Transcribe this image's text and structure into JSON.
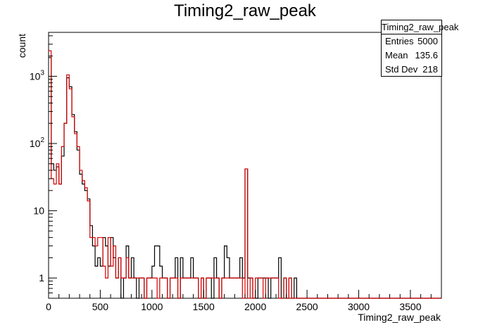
{
  "chart_data": {
    "type": "histogram",
    "title": "Timing2_raw_peak",
    "xlabel": "Timing2_raw_peak",
    "ylabel": "count",
    "xlim": [
      0,
      3800
    ],
    "ylim": [
      0.5,
      4500
    ],
    "log_y": true,
    "bin_width": 25,
    "x_ticks": [
      0,
      500,
      1000,
      1500,
      2000,
      2500,
      3000,
      3500
    ],
    "y_ticks": [
      {
        "value": 1,
        "label": "1"
      },
      {
        "value": 10,
        "label": "10"
      },
      {
        "value": 100,
        "label": "10^2"
      },
      {
        "value": 1000,
        "label": "10^3"
      }
    ],
    "series": [
      {
        "color": "#000000",
        "counts": [
          1900,
          50,
          40,
          45,
          25,
          65,
          200,
          950,
          700,
          270,
          150,
          80,
          35,
          25,
          20,
          15,
          6,
          3,
          1.5,
          2,
          1.5,
          4,
          3,
          1.5,
          4,
          2,
          1,
          2,
          0,
          1,
          3,
          1,
          2,
          1,
          0,
          1,
          1,
          0,
          1,
          1,
          1.5,
          3,
          3,
          1.5,
          1,
          1,
          0,
          1,
          1,
          2,
          0,
          2,
          1,
          1,
          1,
          2,
          1,
          1,
          0,
          1,
          0,
          1,
          1,
          0,
          2,
          1,
          0,
          1,
          3,
          2,
          1,
          1,
          1,
          1,
          2,
          1,
          1,
          1,
          1,
          0,
          0,
          1,
          1,
          1,
          1,
          0,
          1,
          1,
          1,
          2,
          0,
          1,
          0,
          1,
          0,
          1,
          0,
          0,
          0,
          0,
          0,
          0,
          0,
          0,
          0,
          0
        ]
      },
      {
        "color": "#d40000",
        "counts": [
          2400,
          30,
          25,
          50,
          25,
          90,
          200,
          1050,
          650,
          250,
          140,
          90,
          40,
          28,
          22,
          14,
          4,
          4,
          3,
          4,
          4,
          1.5,
          1,
          4,
          1.5,
          3,
          1,
          2,
          1,
          1,
          2,
          1,
          1,
          1,
          1,
          1,
          1,
          0,
          1,
          1,
          1,
          1,
          0,
          1,
          1,
          1,
          0,
          1,
          1,
          1,
          0,
          1,
          1,
          1,
          1,
          1,
          1,
          1,
          0,
          1,
          0,
          1,
          1,
          1,
          1,
          1,
          0,
          1,
          1,
          1,
          1,
          1,
          1,
          1,
          1,
          0,
          1,
          0,
          1,
          0,
          1,
          1,
          1,
          0,
          1,
          1,
          1,
          1,
          1,
          0,
          0,
          1,
          0,
          1,
          0,
          0,
          0,
          0,
          0,
          0,
          0,
          0,
          0,
          0,
          0,
          0
        ]
      }
    ],
    "spike": {
      "x": 1900,
      "black": 42,
      "red": 42
    }
  },
  "stats_box": {
    "title": "Timing2_raw_peak",
    "rows": [
      {
        "label": "Entries",
        "value": "5000"
      },
      {
        "label": "Mean",
        "value": "135.6"
      },
      {
        "label": "Std Dev",
        "value": "218"
      }
    ]
  }
}
